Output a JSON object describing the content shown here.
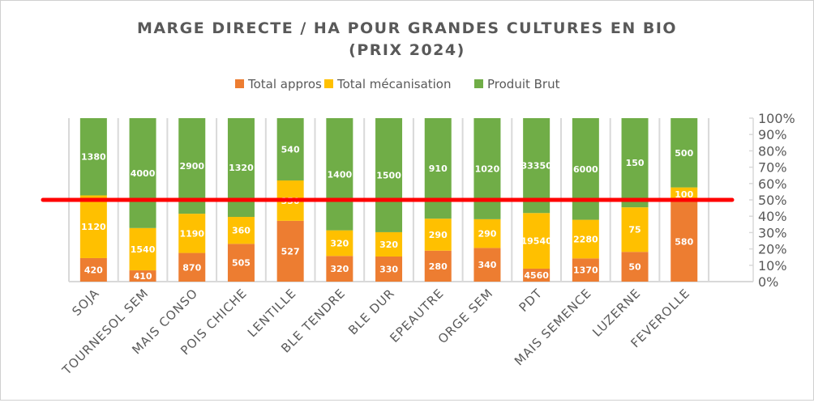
{
  "chart_data": {
    "type": "bar",
    "stacked": "percent",
    "title": "MARGE DIRECTE / HA POUR GRANDES CULTURES EN BIO",
    "subtitle": "(PRIX 2024)",
    "categories": [
      "SOJA",
      "TOURNESOL SEM",
      "MAIS CONSO",
      "POIS CHICHE",
      "LENTILLE",
      "BLE TENDRE",
      "BLE DUR",
      "EPEAUTRE",
      "ORGE SEM",
      "PDT",
      "MAIS SEMENCE",
      "LUZERNE",
      "FEVEROLLE"
    ],
    "series": [
      {
        "name": "Total appros",
        "color": "#ED7D31",
        "values": [
          420,
          410,
          870,
          505,
          527,
          320,
          330,
          280,
          340,
          4560,
          1370,
          50,
          580
        ]
      },
      {
        "name": "Total mécanisation",
        "color": "#FFC000",
        "values": [
          1120,
          1540,
          1190,
          360,
          350,
          320,
          320,
          290,
          290,
          19540,
          2280,
          75,
          100
        ]
      },
      {
        "name": "Produit Brut",
        "color": "#70AD47",
        "values": [
          1380,
          4000,
          2900,
          1320,
          540,
          1400,
          1500,
          910,
          1020,
          33350,
          6000,
          150,
          500
        ]
      }
    ],
    "y_axis": {
      "position": "right",
      "ticks": [
        "0%",
        "10%",
        "20%",
        "30%",
        "40%",
        "50%",
        "60%",
        "70%",
        "80%",
        "90%",
        "100%"
      ],
      "range": [
        0,
        100
      ]
    },
    "reference_line": {
      "value": 50,
      "color": "#FF0000"
    },
    "legend": "top",
    "grid": "vertical"
  }
}
